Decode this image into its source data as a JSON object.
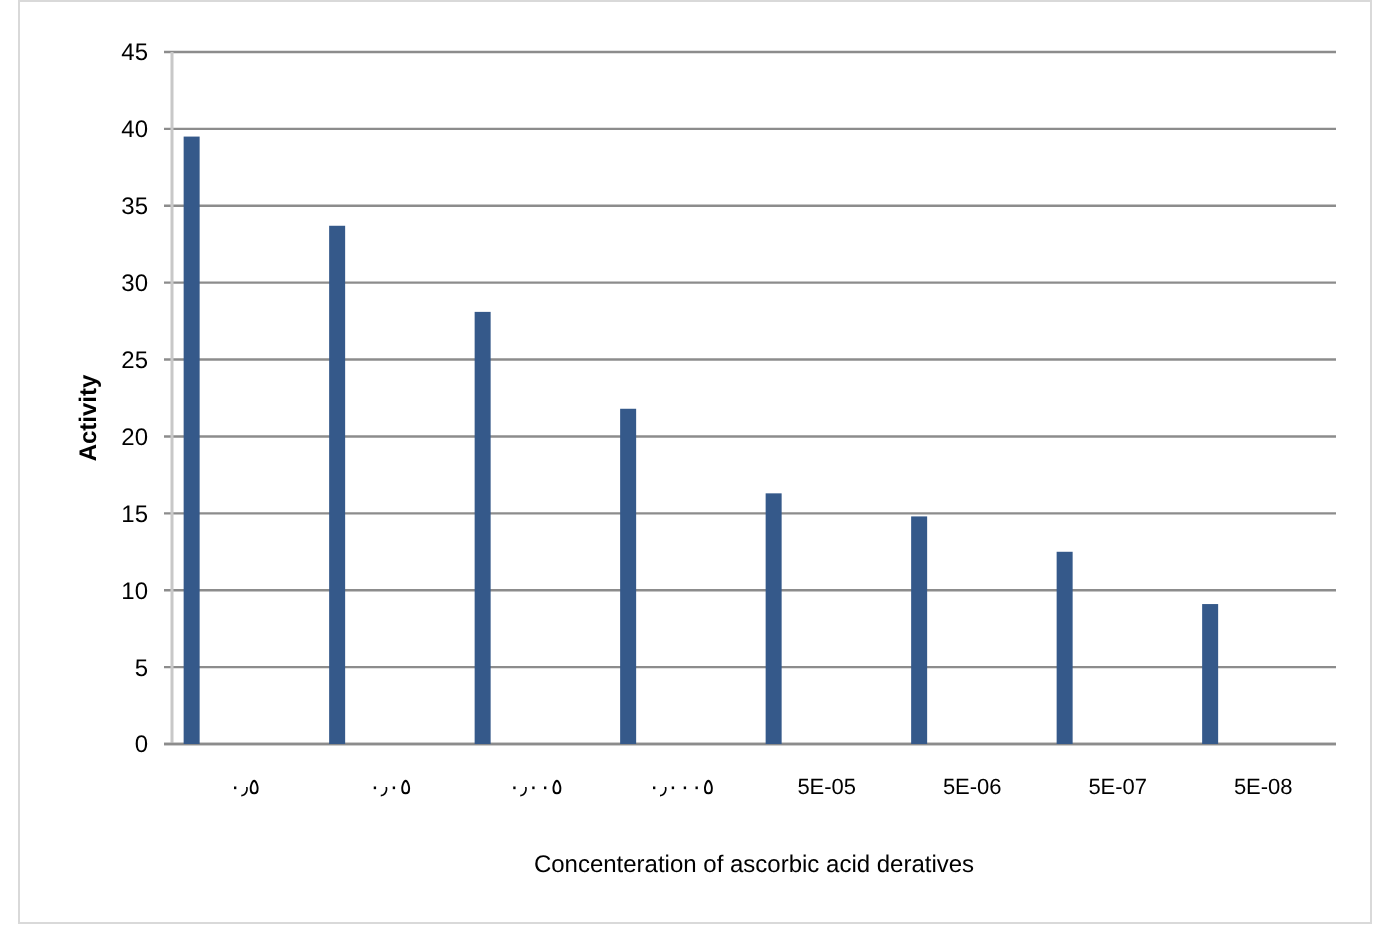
{
  "chart_data": {
    "type": "bar",
    "xlabel": "Concenteration of ascorbic acid deratives",
    "ylabel": "Activity",
    "categories": [
      "٠٫٥",
      "٠٫٠٥",
      "٠٫٠٠٥",
      "٠٫٠٠٠٥",
      "5E-05",
      "5E-06",
      "5E-07",
      "5E-08"
    ],
    "values": [
      39.5,
      33.7,
      28.1,
      21.8,
      16.3,
      14.8,
      12.5,
      9.1
    ],
    "color": "#35598a",
    "ylim": [
      0,
      45
    ],
    "yticks": [
      0,
      5,
      10,
      15,
      20,
      25,
      30,
      35,
      40,
      45
    ],
    "grid": "y"
  }
}
